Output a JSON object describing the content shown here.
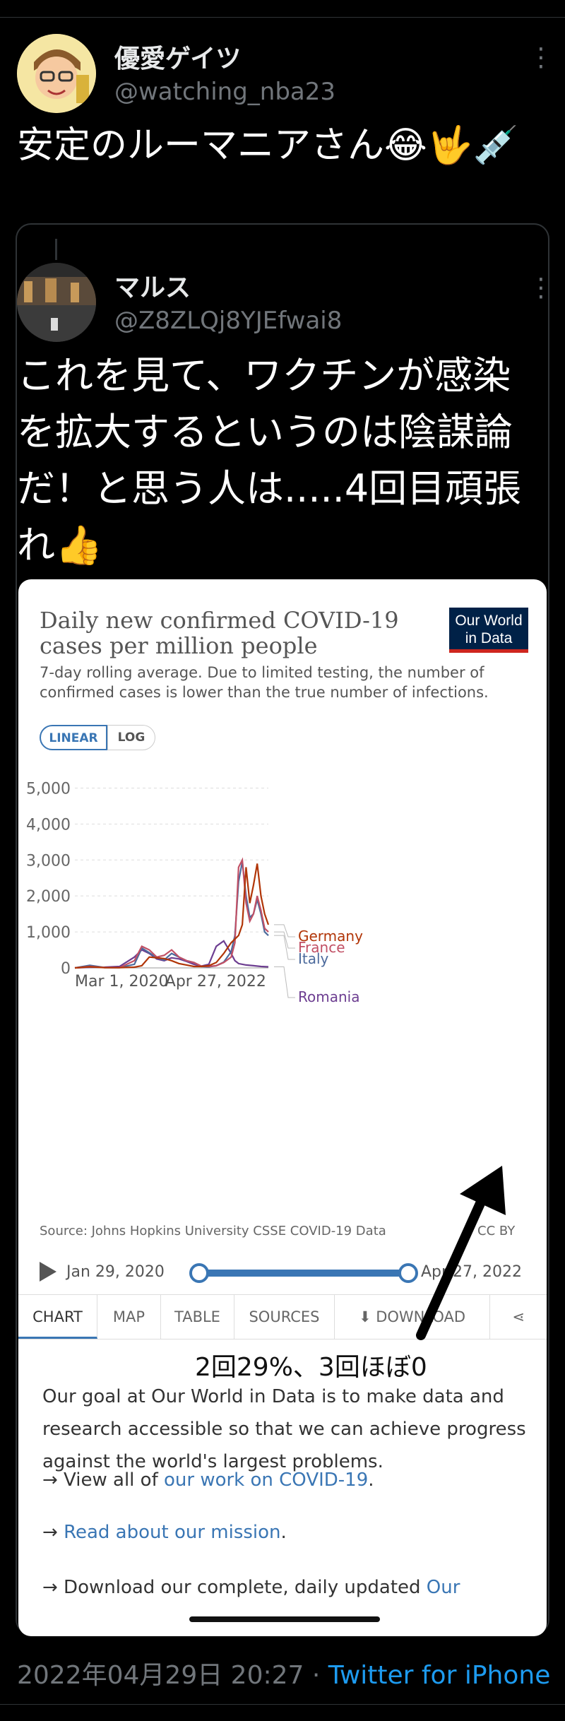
{
  "outer_tweet": {
    "display_name": "優愛ゲイツ",
    "handle": "@watching_nba23",
    "text": "安定のルーマニアさん😂🤟💉"
  },
  "quoted_tweet": {
    "display_name": "マルス",
    "handle": "@Z8ZLQj8YJEfwai8",
    "text": "これを見て、ワクチンが感染を拡大するというのは陰謀論だ！と思う人は.....4回目頑張れ👍"
  },
  "card": {
    "title": "Daily new confirmed COVID-19 cases per million people",
    "subtitle": "7-day rolling average. Due to limited testing, the number of confirmed cases is lower than the true number of infections.",
    "logo_line1": "Our World",
    "logo_line2": "in Data",
    "scale_linear": "LINEAR",
    "scale_log": "LOG",
    "source": "Source: Johns Hopkins University CSSE COVID-19 Data",
    "license": "CC BY",
    "timeline_start": "Jan 29, 2020",
    "timeline_end": "Apr 27, 2022",
    "tabs": [
      "CHART",
      "MAP",
      "TABLE",
      "SOURCES",
      "DOWNLOAD"
    ],
    "annotation": "2回29%、3回ほぼ0",
    "desc1": "Our goal at Our World in Data is to make data and research accessible so that we can achieve progress against the world's largest problems.",
    "desc2_prefix": "→ View all of ",
    "desc2_link": "our work on COVID-19",
    "desc2_suffix": ".",
    "desc3_prefix": "→ ",
    "desc3_link": "Read about our mission",
    "desc3_suffix": ".",
    "desc4_prefix": "→ Download our complete, daily updated ",
    "desc4_link": "Our"
  },
  "footer": {
    "timestamp": "2022年04月29日 20:27",
    "separator": " · ",
    "source": "Twitter for iPhone"
  },
  "chart_data": {
    "type": "line",
    "title": "Daily new confirmed COVID-19 cases per million people",
    "subtitle": "7-day rolling average. Due to limited testing, the number of confirmed cases is lower than the true number of infections.",
    "x_ticks": [
      "Mar 1, 2020",
      "Apr 27, 2022"
    ],
    "y_ticks": [
      0,
      1000,
      2000,
      3000,
      4000,
      5000
    ],
    "ylim": [
      0,
      5500
    ],
    "x_months": 26,
    "series": [
      {
        "name": "Germany",
        "color": "#b13507",
        "x": [
          0,
          2,
          4,
          6,
          8,
          9,
          10,
          12,
          13,
          14,
          15,
          16,
          17,
          18,
          19,
          20,
          21,
          22,
          22.5,
          23,
          23.5,
          24,
          24.5,
          25,
          25.5,
          26
        ],
        "y": [
          0,
          30,
          5,
          5,
          20,
          60,
          300,
          260,
          200,
          120,
          80,
          40,
          40,
          60,
          150,
          400,
          700,
          900,
          1200,
          2800,
          1800,
          2300,
          2900,
          2000,
          1500,
          1200
        ]
      },
      {
        "name": "France",
        "color": "#c15065",
        "x": [
          0,
          2,
          4,
          6,
          8,
          9,
          10,
          11,
          12,
          13,
          14,
          15,
          16,
          17,
          18,
          19,
          20,
          21,
          21.5,
          22,
          22.5,
          23,
          23.5,
          24,
          24.5,
          25,
          25.5,
          26
        ],
        "y": [
          0,
          40,
          10,
          5,
          200,
          600,
          500,
          300,
          350,
          500,
          300,
          200,
          150,
          50,
          40,
          60,
          150,
          300,
          700,
          2800,
          3000,
          1800,
          1300,
          1500,
          2000,
          1600,
          1100,
          1000
        ]
      },
      {
        "name": "Italy",
        "color": "#4c6a9c",
        "x": [
          0,
          2,
          4,
          6,
          8,
          9,
          10,
          11,
          12,
          13,
          14,
          15,
          16,
          17,
          18,
          19,
          20,
          21,
          21.5,
          22,
          22.5,
          23,
          23.5,
          24,
          24.5,
          25,
          25.5,
          26
        ],
        "y": [
          0,
          70,
          10,
          5,
          100,
          550,
          420,
          280,
          220,
          400,
          300,
          200,
          150,
          40,
          30,
          60,
          160,
          450,
          900,
          2400,
          2950,
          2000,
          1400,
          1500,
          1900,
          1500,
          1000,
          900
        ]
      },
      {
        "name": "Romania",
        "color": "#6d3e91",
        "x": [
          0,
          2,
          4,
          6,
          8,
          9,
          10,
          11,
          12,
          13,
          14,
          15,
          16,
          17,
          18,
          19,
          20,
          21,
          21.5,
          22,
          23,
          24,
          25,
          26
        ],
        "y": [
          0,
          15,
          20,
          40,
          300,
          500,
          400,
          250,
          200,
          280,
          250,
          180,
          100,
          50,
          100,
          600,
          750,
          400,
          200,
          120,
          80,
          60,
          40,
          30
        ]
      }
    ],
    "legend_placement": "right"
  }
}
